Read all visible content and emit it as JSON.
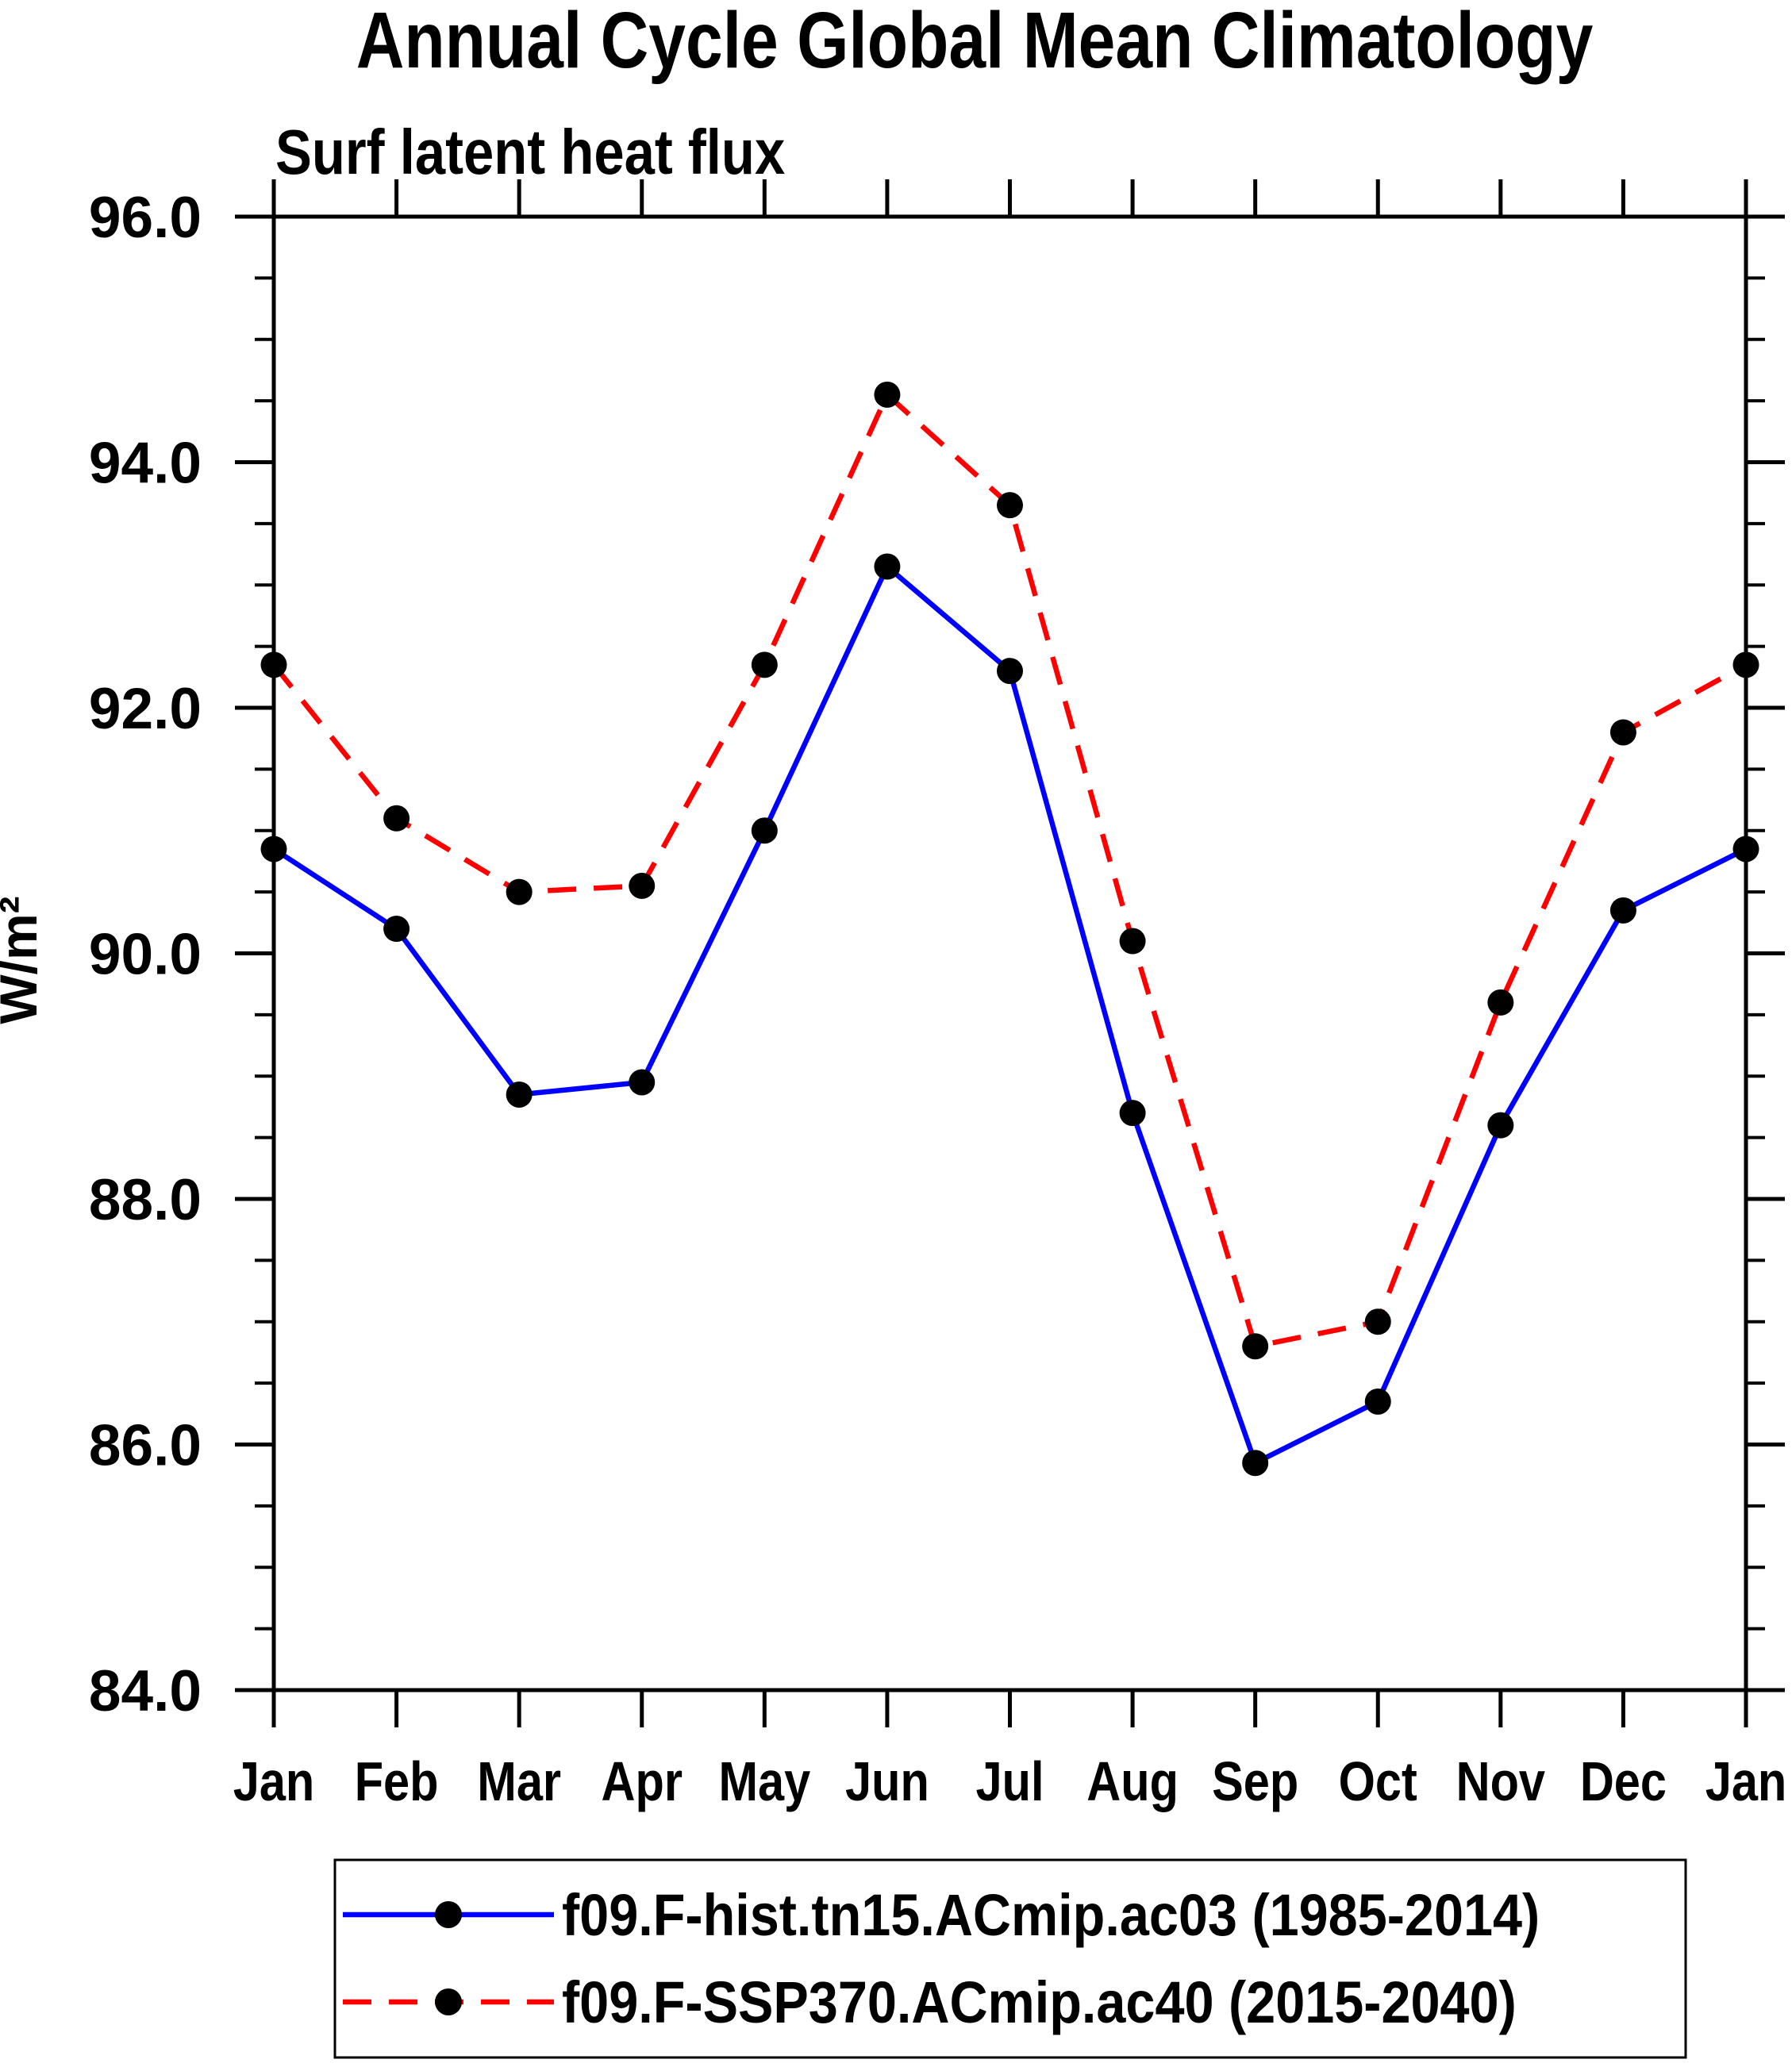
{
  "chart_data": {
    "type": "line",
    "title": "Annual Cycle Global Mean Climatology",
    "subtitle": "Surf latent heat flux",
    "ylabel": "W/m²",
    "x_categories": [
      "Jan",
      "Feb",
      "Mar",
      "Apr",
      "May",
      "Jun",
      "Jul",
      "Aug",
      "Sep",
      "Oct",
      "Nov",
      "Dec",
      "Jan"
    ],
    "ylim": [
      84.0,
      96.0
    ],
    "y_major_step": 2.0,
    "y_minor_step": 0.5,
    "y_tick_labels": [
      "84.0",
      "86.0",
      "88.0",
      "90.0",
      "92.0",
      "94.0",
      "96.0"
    ],
    "grid": false,
    "legend_position": "bottom",
    "axis_color": "#000000",
    "marker_shape": "filled-circle",
    "series": [
      {
        "name": "f09.F-hist.tn15.ACmip.ac03 (1985-2014)",
        "color": "#0000ff",
        "line_style": "solid",
        "marker_color": "#000000",
        "values": [
          90.85,
          90.2,
          88.85,
          88.95,
          91.0,
          93.15,
          92.3,
          88.7,
          85.85,
          86.35,
          88.6,
          90.35,
          90.85
        ]
      },
      {
        "name": "f09.F-SSP370.ACmip.ac40 (2015-2040)",
        "color": "#ff0000",
        "line_style": "dashed",
        "marker_color": "#000000",
        "values": [
          92.35,
          91.1,
          90.5,
          90.55,
          92.35,
          94.55,
          93.65,
          90.1,
          86.8,
          87.0,
          89.6,
          91.8,
          92.35
        ]
      }
    ]
  }
}
